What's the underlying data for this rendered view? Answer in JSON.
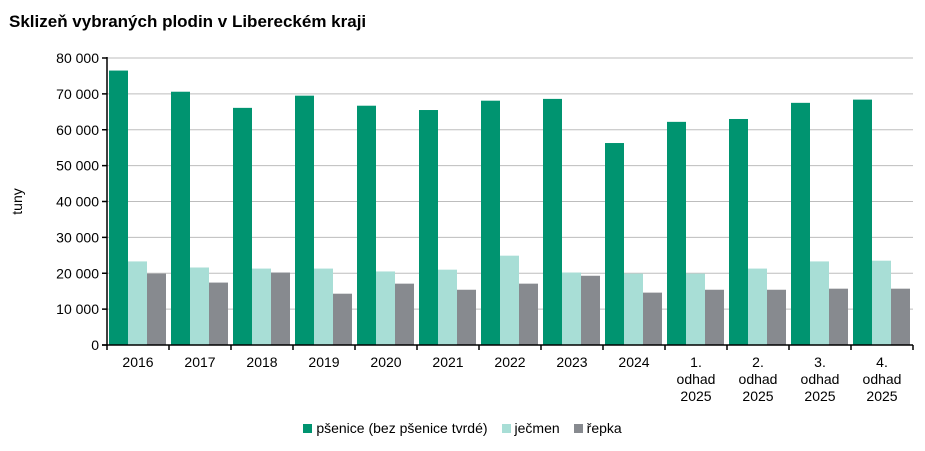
{
  "chart_data": {
    "type": "bar",
    "title": "Sklizeň vybraných plodin v Libereckém kraji",
    "ylabel": "tuny",
    "xlabel": "",
    "ylim": [
      0,
      80000
    ],
    "yticks": [
      "0",
      "10 000",
      "20 000",
      "30 000",
      "40 000",
      "50 000",
      "60 000",
      "70 000",
      "80 000"
    ],
    "grid": true,
    "legend_position": "bottom",
    "categories": [
      "2016",
      "2017",
      "2018",
      "2019",
      "2020",
      "2021",
      "2022",
      "2023",
      "2024",
      "1.\nodhad\n2025",
      "2.\nodhad\n2025",
      "3.\nodhad\n2025",
      "4.\nodhad\n2025"
    ],
    "series": [
      {
        "name": "pšenice (bez pšenice tvrdé)",
        "color": "#009470",
        "values": [
          76500,
          70600,
          66100,
          69500,
          66700,
          65500,
          68100,
          68600,
          56300,
          62200,
          63000,
          67500,
          68400
        ]
      },
      {
        "name": "ječmen",
        "color": "#a8ded6",
        "values": [
          23300,
          21600,
          21300,
          21300,
          20500,
          21000,
          24900,
          20200,
          19900,
          19900,
          21300,
          23300,
          23500
        ]
      },
      {
        "name": "řepka",
        "color": "#878a8f",
        "values": [
          19900,
          17400,
          20200,
          14300,
          17100,
          15400,
          17100,
          19300,
          14600,
          15400,
          15400,
          15700,
          15700
        ]
      }
    ]
  }
}
